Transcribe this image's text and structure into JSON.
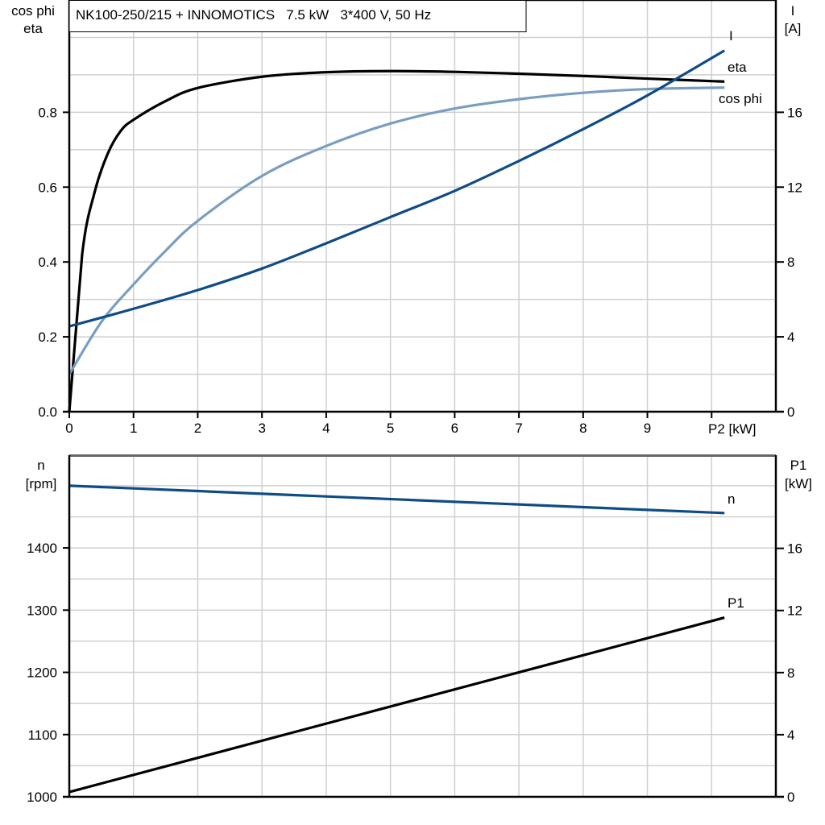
{
  "title": "NK100-250/215 + INNOMOTICS   7.5 kW   3*400 V, 50 Hz",
  "colors": {
    "eta": "#000000",
    "cos_phi": "#7a9ec0",
    "I": "#0f4c86",
    "n": "#0f4c86",
    "P1": "#000000",
    "grid": "#d0d0d0"
  },
  "chart_data": [
    {
      "type": "line",
      "title": "NK100-250/215 + INNOMOTICS   7.5 kW   3*400 V, 50 Hz",
      "xlabel": "P2 [kW]",
      "ylabel_left": [
        "cos phi",
        "eta"
      ],
      "ylabel_right": [
        "I",
        "[A]"
      ],
      "xlim": [
        0,
        11
      ],
      "ylim_left": [
        0,
        1.1
      ],
      "ylim_right": [
        0,
        22
      ],
      "x_ticks": [
        "0",
        "1",
        "2",
        "3",
        "4",
        "5",
        "6",
        "7",
        "8",
        "9"
      ],
      "y_left_ticks": [
        "0.0",
        "0.2",
        "0.4",
        "0.6",
        "0.8"
      ],
      "y_right_ticks": [
        "0",
        "4",
        "8",
        "12",
        "16"
      ],
      "grid": true,
      "series": [
        {
          "name": "eta",
          "axis": "left",
          "x": [
            0,
            0.2,
            0.4,
            0.6,
            0.8,
            1,
            1.5,
            2,
            3,
            4,
            5,
            6,
            7,
            8,
            9,
            10.2
          ],
          "y": [
            0,
            0.42,
            0.59,
            0.69,
            0.75,
            0.78,
            0.83,
            0.865,
            0.895,
            0.907,
            0.91,
            0.908,
            0.903,
            0.897,
            0.89,
            0.882
          ]
        },
        {
          "name": "cos phi",
          "axis": "left",
          "x": [
            0,
            0.5,
            1,
            1.5,
            2,
            3,
            4,
            5,
            6,
            7,
            8,
            9,
            10.2
          ],
          "y": [
            0.1,
            0.24,
            0.34,
            0.43,
            0.51,
            0.63,
            0.71,
            0.77,
            0.81,
            0.835,
            0.852,
            0.862,
            0.866
          ]
        },
        {
          "name": "I",
          "axis": "right",
          "x": [
            0,
            1,
            2,
            3,
            4,
            5,
            6,
            7,
            8,
            9,
            10.2
          ],
          "y": [
            4.56,
            5.5,
            6.5,
            7.65,
            9.0,
            10.4,
            11.8,
            13.4,
            15.1,
            16.9,
            19.3
          ]
        }
      ]
    },
    {
      "type": "line",
      "ylabel_left": [
        "n",
        "[rpm]"
      ],
      "ylabel_right": [
        "P1",
        "[kW]"
      ],
      "xlim": [
        0,
        11
      ],
      "ylim_left": [
        1000,
        1549
      ],
      "ylim_right": [
        0,
        22
      ],
      "y_left_ticks": [
        "1000",
        "1100",
        "1200",
        "1300",
        "1400"
      ],
      "y_right_ticks": [
        "0",
        "4",
        "8",
        "12",
        "16"
      ],
      "grid": true,
      "series": [
        {
          "name": "n",
          "axis": "left",
          "x": [
            0,
            10.2
          ],
          "y": [
            1500,
            1456
          ]
        },
        {
          "name": "P1",
          "axis": "right",
          "x": [
            0,
            10.2
          ],
          "y": [
            0.31,
            11.54
          ]
        }
      ]
    }
  ]
}
